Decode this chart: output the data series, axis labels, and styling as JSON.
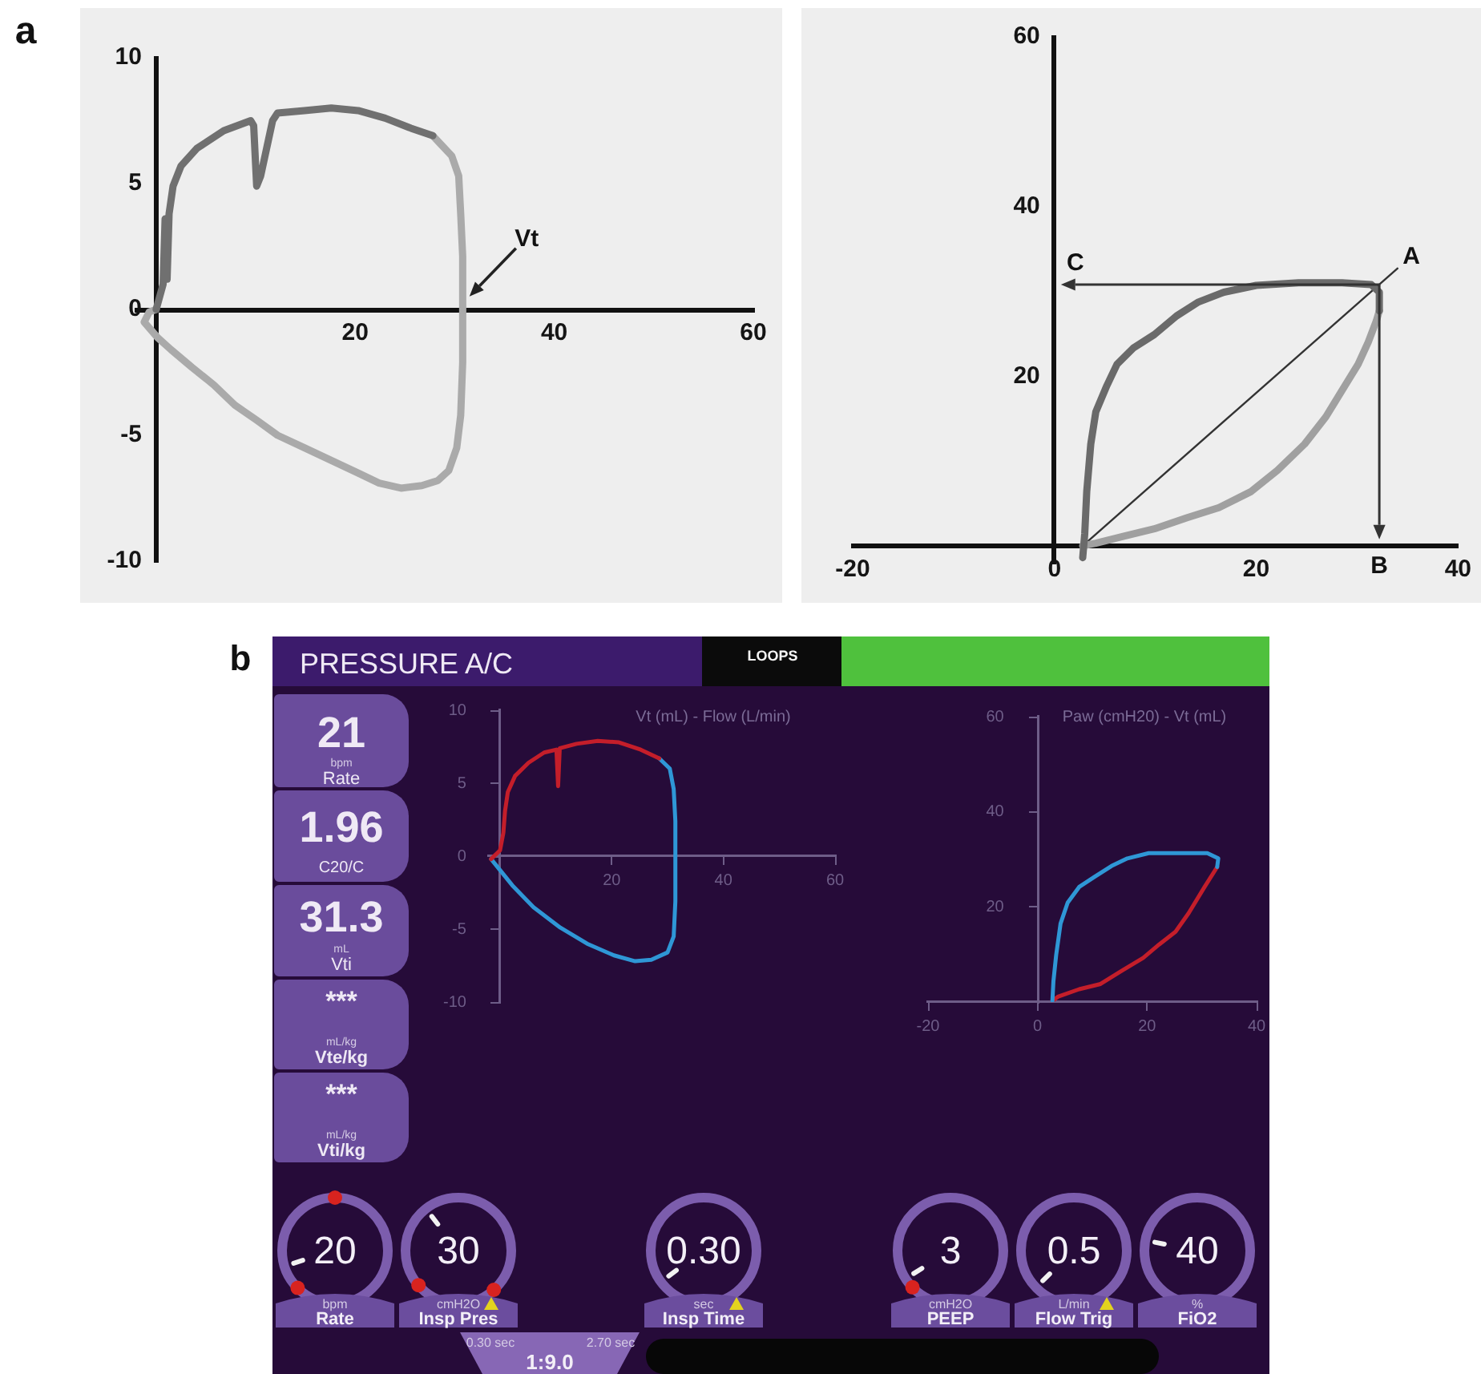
{
  "chart_data": [
    {
      "type": "line",
      "xlim": [
        -2,
        60
      ],
      "ylim": [
        -10,
        10
      ],
      "xticks": [
        20,
        40,
        60
      ],
      "yticks": [
        -10,
        -5,
        0,
        5,
        10
      ],
      "annotations": [
        "a",
        {
          "text": "Vt",
          "x": 30.8,
          "y": 0.5
        }
      ],
      "series": [
        {
          "color": "#707070",
          "x": [
            0,
            0.7,
            0.9,
            1.1,
            1.3,
            1.7,
            2.5,
            4.1,
            6.8,
            9.5,
            9.8,
            10.1,
            10.5,
            11.7,
            12.2,
            14.9,
            17.6,
            20.3,
            23.0,
            25.6,
            27.8
          ],
          "values": [
            0,
            1.0,
            3.6,
            1.2,
            3.8,
            4.9,
            5.7,
            6.4,
            7.1,
            7.5,
            7.3,
            4.9,
            5.3,
            7.5,
            7.8,
            7.9,
            8.0,
            7.9,
            7.6,
            7.2,
            6.9
          ]
        },
        {
          "color": "#aaaaaa",
          "x": [
            27.8,
            29.7,
            30.4,
            30.6,
            30.8,
            30.8,
            30.6,
            30.2,
            29.4,
            28.3,
            26.7,
            24.6,
            22.4,
            20.3,
            17.6,
            14.9,
            12.2,
            10.1,
            7.9,
            5.8,
            3.6,
            1.5,
            0.1,
            -1.2,
            -0.7,
            0
          ],
          "values": [
            6.9,
            6.1,
            5.3,
            3.8,
            2.1,
            -2.1,
            -4.2,
            -5.5,
            -6.4,
            -6.8,
            -7.0,
            -7.1,
            -6.9,
            -6.5,
            -6.0,
            -5.5,
            -5.0,
            -4.4,
            -3.8,
            -3.0,
            -2.3,
            -1.6,
            -1.1,
            -0.5,
            -0.1,
            0
          ]
        }
      ]
    },
    {
      "type": "line",
      "xlim": [
        -20,
        40
      ],
      "ylim": [
        -2,
        60
      ],
      "xticks": [
        -20,
        0,
        20,
        40
      ],
      "yticks": [
        20,
        40,
        60
      ],
      "annotations": [
        {
          "text": "A",
          "x": 32.2,
          "y": 30.8
        },
        "B",
        "C"
      ],
      "series": [
        {
          "color": "#6a6a6a",
          "x": [
            2.8,
            3.0,
            3.2,
            3.6,
            4.1,
            5.2,
            6.2,
            7.8,
            9.9,
            12.1,
            14.2,
            16.8,
            20.0,
            24.2,
            28.5,
            31.4,
            32.2,
            32.2
          ],
          "values": [
            -1.4,
            1.4,
            6.4,
            12.0,
            15.8,
            18.9,
            21.4,
            23.3,
            24.9,
            27.1,
            28.7,
            29.9,
            30.7,
            31.0,
            31.0,
            30.8,
            29.9,
            27.7
          ]
        },
        {
          "color": "#a0a0a0",
          "x": [
            32.2,
            31.9,
            31.1,
            30.1,
            28.5,
            26.9,
            24.8,
            22.1,
            19.5,
            16.3,
            13.1,
            9.9,
            6.8,
            4.1,
            2.8
          ],
          "values": [
            27.7,
            26.5,
            24.0,
            21.4,
            18.3,
            15.2,
            12.0,
            8.9,
            6.4,
            4.5,
            3.3,
            2.0,
            1.1,
            0.3,
            0
          ]
        },
        {
          "type": "line",
          "color": "#333333",
          "x": [
            2.8,
            34.0
          ],
          "values": [
            0,
            32.7
          ]
        }
      ]
    },
    {
      "type": "other",
      "annotations": [
        "b",
        "PRESSURE A/C",
        "LOOPS",
        "21",
        "bpm",
        "Rate",
        "1.96",
        "C20/C",
        "31.3",
        "mL",
        "Vti",
        "***",
        "mL/kg",
        "Vte/kg",
        "***",
        "mL/kg",
        "Vti/kg"
      ]
    },
    {
      "type": "line",
      "title": "Vt (mL) - Flow (L/min)",
      "xlim": [
        -2,
        60
      ],
      "ylim": [
        -10,
        10
      ],
      "xticks": [
        20,
        40,
        60
      ],
      "yticks": [
        -10,
        -5,
        0,
        5,
        10
      ],
      "series": [
        {
          "color": "#c41e2a",
          "x": [
            -1.6,
            0,
            0.6,
            0.9,
            1.4,
            2.7,
            5.1,
            7.9,
            10.1,
            10.4,
            10.7,
            13.7,
            17.5,
            21.3,
            25.2,
            28.5
          ],
          "values": [
            -0.2,
            0.4,
            1.6,
            3.1,
            4.4,
            5.5,
            6.4,
            7.1,
            7.3,
            4.8,
            7.4,
            7.7,
            7.9,
            7.8,
            7.3,
            6.7
          ]
        },
        {
          "color": "#2f97d6",
          "x": [
            28.5,
            30.4,
            31.1,
            31.4,
            31.4,
            31.1,
            30.0,
            27.1,
            24.2,
            20.4,
            15.6,
            10.8,
            6.0,
            2.2,
            -1.6
          ],
          "values": [
            6.7,
            6.0,
            4.6,
            2.4,
            -3.1,
            -5.5,
            -6.6,
            -7.1,
            -7.2,
            -6.8,
            -6.0,
            -4.9,
            -3.5,
            -2.0,
            -0.2
          ]
        }
      ]
    },
    {
      "type": "line",
      "title": "Paw (cmH20) - Vt (mL)",
      "xlim": [
        -20,
        40
      ],
      "ylim": [
        0,
        60
      ],
      "xticks": [
        -20,
        0,
        20,
        40
      ],
      "yticks": [
        20,
        40,
        60
      ],
      "series": [
        {
          "color": "#2f97d6",
          "x": [
            2.7,
            2.9,
            3.4,
            4.2,
            5.5,
            7.6,
            10.5,
            13.5,
            16.4,
            20.3,
            25.2,
            31.0,
            33.0,
            32.8
          ],
          "values": [
            0,
            4.4,
            9.9,
            16.5,
            20.9,
            24.2,
            26.4,
            28.6,
            30.2,
            31.3,
            31.3,
            31.3,
            30.2,
            28.4
          ]
        },
        {
          "color": "#c41e2a",
          "x": [
            32.8,
            30.5,
            27.6,
            25.2,
            22.2,
            19.3,
            15.4,
            11.5,
            7.6,
            3.7,
            2.7
          ],
          "values": [
            28.4,
            24.2,
            18.7,
            14.8,
            12.1,
            9.3,
            6.6,
            3.8,
            2.7,
            1.1,
            0.2
          ]
        }
      ]
    },
    {
      "type": "other",
      "annotations": [
        "20",
        "bpm",
        "Rate",
        "30",
        "cmH2O",
        "Insp Pres",
        "0.30",
        "sec",
        "Insp Time",
        "3",
        "cmH2O",
        "PEEP",
        "0.5",
        "L/min",
        "Flow Trig",
        "40",
        "%",
        "FiO2",
        "0.30 sec",
        "2.70 sec",
        "1:9.0"
      ]
    }
  ]
}
